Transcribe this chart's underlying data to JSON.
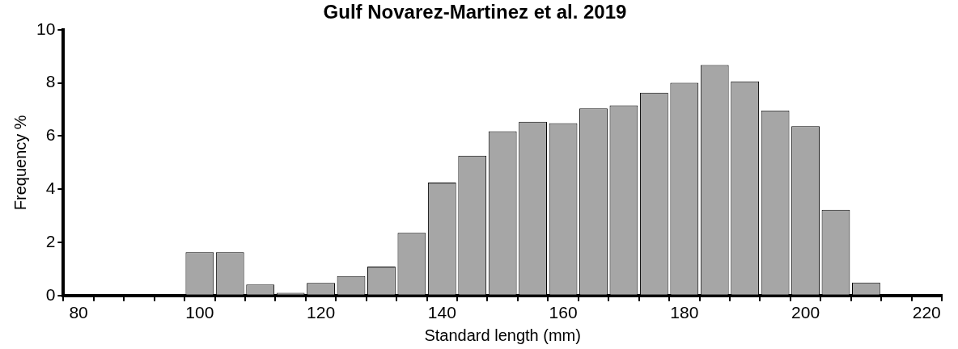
{
  "chart_data": {
    "type": "bar",
    "title": "Gulf Novarez-Martinez et al. 2019",
    "xlabel": "Standard length (mm)",
    "ylabel": "Frequency %",
    "categories": [
      "80",
      null,
      null,
      null,
      "100",
      null,
      null,
      null,
      "120",
      null,
      null,
      null,
      "140",
      null,
      null,
      null,
      "160",
      null,
      null,
      null,
      "180",
      null,
      null,
      null,
      "200",
      null,
      null,
      null,
      "220"
    ],
    "values": [
      null,
      null,
      null,
      null,
      1.63,
      1.63,
      0.41,
      0.1,
      0.47,
      0.73,
      1.09,
      2.36,
      4.25,
      5.26,
      6.18,
      6.54,
      6.48,
      7.04,
      7.15,
      7.63,
      8.0,
      8.67,
      8.06,
      6.96,
      6.37,
      3.22,
      0.49,
      null,
      null
    ],
    "color": "#a6a6a6",
    "ylim": [
      0,
      10
    ],
    "yticks": [
      0,
      2,
      4,
      6,
      8,
      10
    ]
  }
}
